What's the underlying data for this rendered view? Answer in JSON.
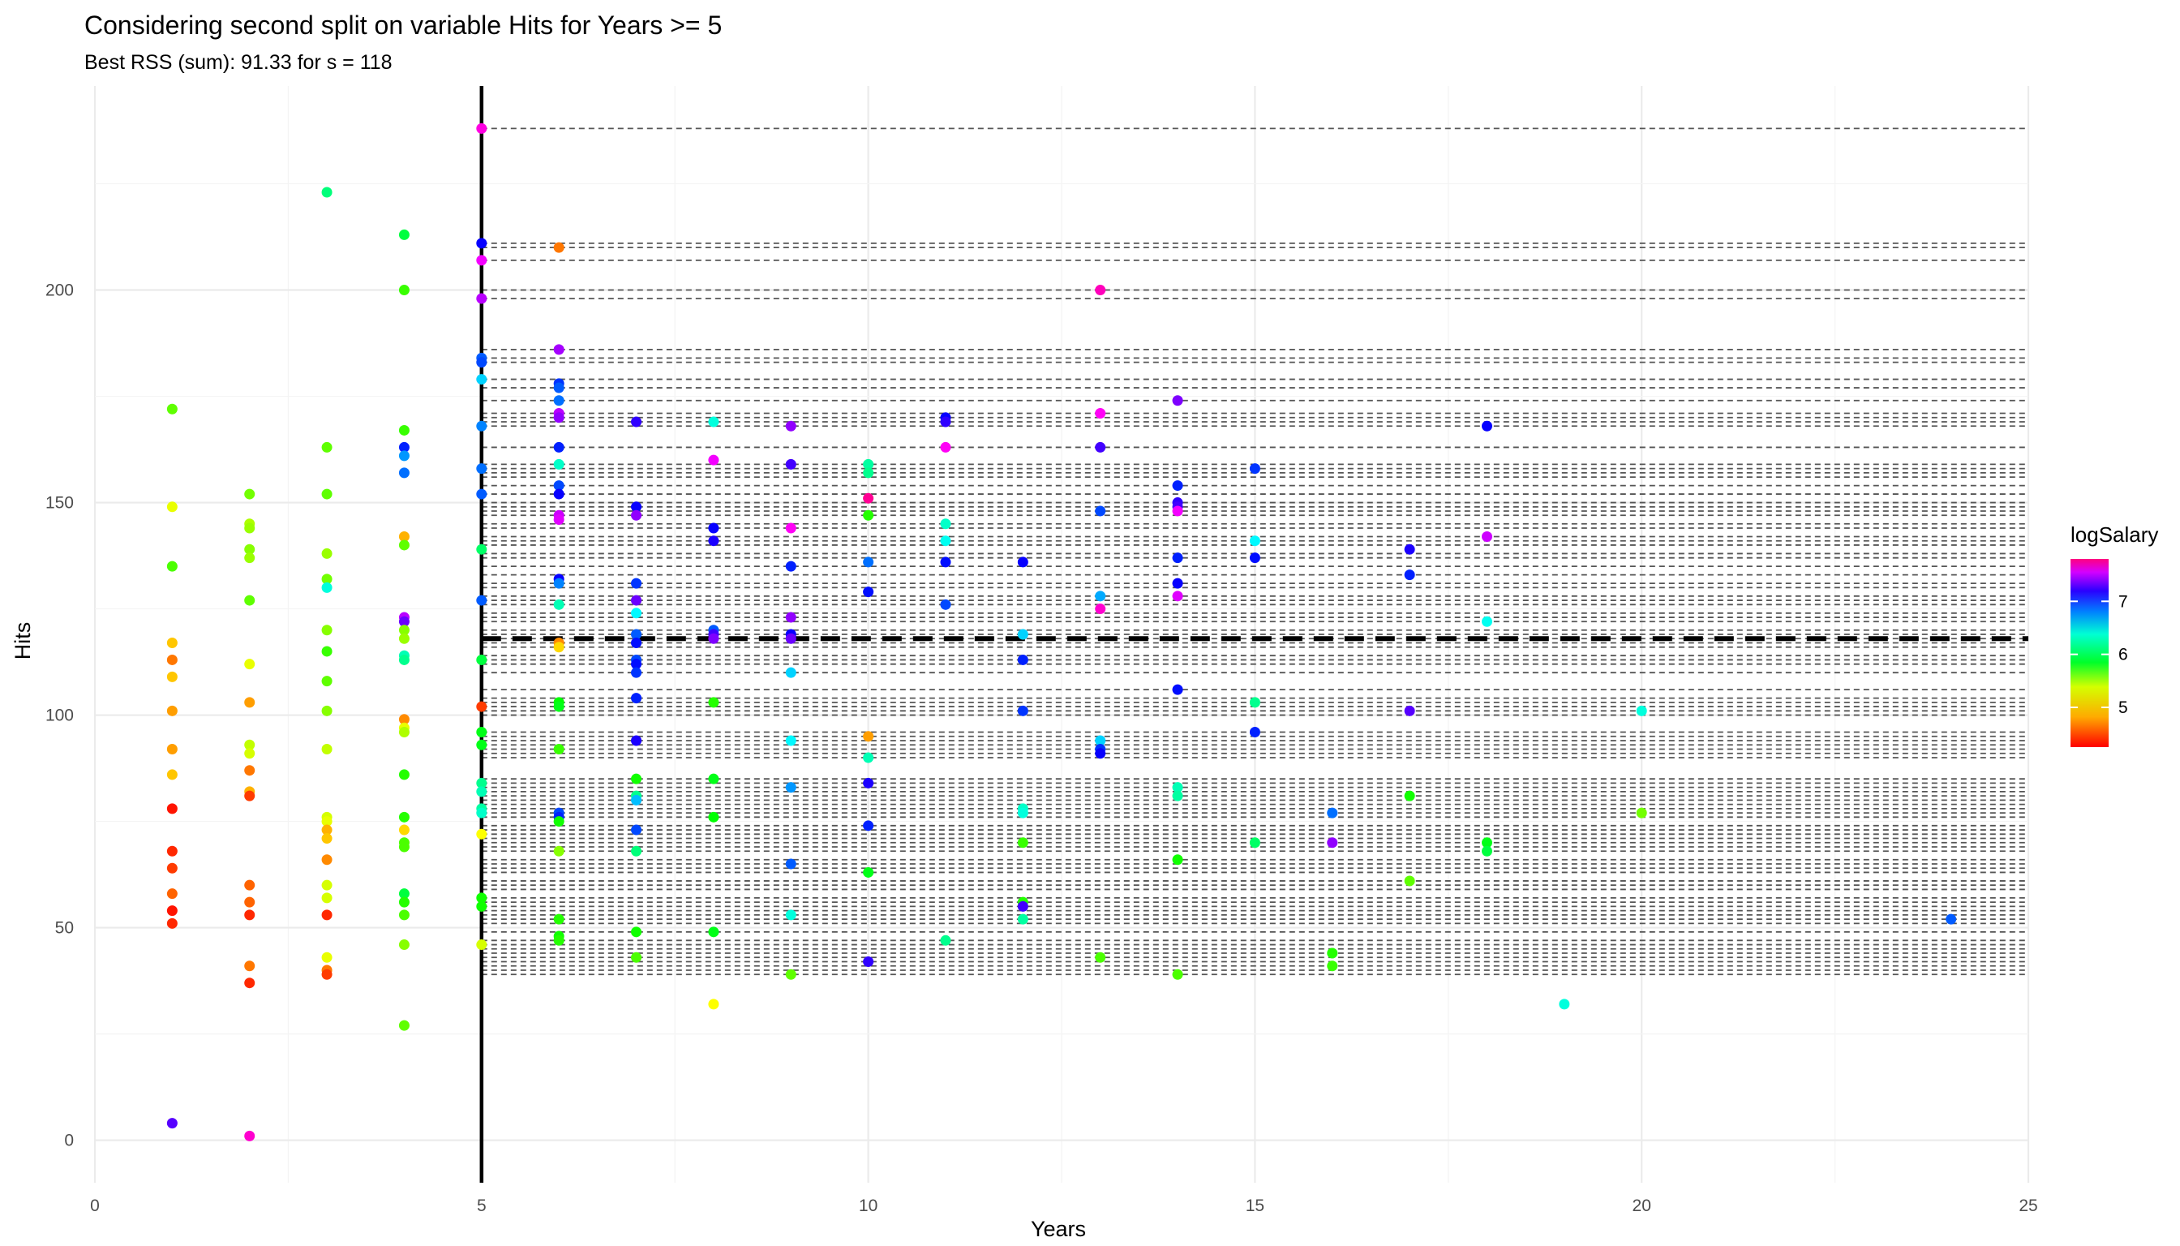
{
  "chart_data": {
    "type": "scatter",
    "title": "Considering second split on variable Hits for Years >= 5",
    "subtitle": "Best RSS (sum): 91.33 for s = 118",
    "xlabel": "Years",
    "ylabel": "Hits",
    "xlim": [
      0,
      25
    ],
    "ylim": [
      -10,
      248
    ],
    "x_ticks": [
      0,
      5,
      10,
      15,
      20,
      25
    ],
    "y_ticks": [
      0,
      50,
      100,
      150,
      200
    ],
    "grid": true,
    "legend": {
      "title": "logSalary",
      "position": "right",
      "ticks": [
        5,
        6,
        7
      ],
      "range": [
        4.25,
        7.8
      ],
      "palette": "rainbow"
    },
    "first_split": {
      "variable": "Years",
      "value": 5
    },
    "second_split": {
      "variable": "Hits",
      "value": 118
    },
    "candidate_splits": [
      39,
      40,
      41,
      42,
      43,
      44,
      45,
      46,
      47,
      49,
      51,
      52,
      53,
      54,
      55,
      56,
      57,
      59,
      60,
      61,
      63,
      64,
      65,
      66,
      68,
      69,
      70,
      71,
      72,
      73,
      74,
      76,
      77,
      78,
      79,
      80,
      81,
      82,
      83,
      84,
      85,
      90,
      91,
      92,
      93,
      94,
      95,
      96,
      100,
      101,
      102,
      103,
      104,
      106,
      110,
      112,
      113,
      114,
      116,
      117,
      118,
      119,
      120,
      122,
      123,
      124,
      126,
      127,
      128,
      130,
      131,
      133,
      135,
      137,
      138,
      140,
      141,
      142,
      144,
      145,
      147,
      148,
      149,
      150,
      152,
      154,
      156,
      157,
      158,
      159,
      163,
      168,
      169,
      170,
      171,
      174,
      177,
      179,
      183,
      184,
      186,
      198,
      200,
      207,
      210,
      211,
      238
    ],
    "points": [
      {
        "x": 1,
        "y": 172,
        "z": 5.3
      },
      {
        "x": 1,
        "y": 149,
        "z": 4.95
      },
      {
        "x": 1,
        "y": 135,
        "z": 5.35
      },
      {
        "x": 1,
        "y": 117,
        "z": 4.75
      },
      {
        "x": 1,
        "y": 113,
        "z": 4.55
      },
      {
        "x": 1,
        "y": 109,
        "z": 4.75
      },
      {
        "x": 1,
        "y": 101,
        "z": 4.65
      },
      {
        "x": 1,
        "y": 92,
        "z": 4.65
      },
      {
        "x": 1,
        "y": 86,
        "z": 4.75
      },
      {
        "x": 1,
        "y": 78,
        "z": 4.3
      },
      {
        "x": 1,
        "y": 68,
        "z": 4.35
      },
      {
        "x": 1,
        "y": 64,
        "z": 4.4
      },
      {
        "x": 1,
        "y": 58,
        "z": 4.5
      },
      {
        "x": 1,
        "y": 54,
        "z": 4.3
      },
      {
        "x": 1,
        "y": 51,
        "z": 4.35
      },
      {
        "x": 1,
        "y": 4,
        "z": 7.05
      },
      {
        "x": 2,
        "y": 152,
        "z": 5.25
      },
      {
        "x": 2,
        "y": 145,
        "z": 5.1
      },
      {
        "x": 2,
        "y": 144,
        "z": 5.15
      },
      {
        "x": 2,
        "y": 139,
        "z": 5.2
      },
      {
        "x": 2,
        "y": 137,
        "z": 5.15
      },
      {
        "x": 2,
        "y": 127,
        "z": 5.3
      },
      {
        "x": 2,
        "y": 112,
        "z": 4.95
      },
      {
        "x": 2,
        "y": 103,
        "z": 4.65
      },
      {
        "x": 2,
        "y": 93,
        "z": 5.05
      },
      {
        "x": 2,
        "y": 91,
        "z": 5.0
      },
      {
        "x": 2,
        "y": 87,
        "z": 4.55
      },
      {
        "x": 2,
        "y": 82,
        "z": 4.7
      },
      {
        "x": 2,
        "y": 81,
        "z": 4.4
      },
      {
        "x": 2,
        "y": 60,
        "z": 4.5
      },
      {
        "x": 2,
        "y": 56,
        "z": 4.5
      },
      {
        "x": 2,
        "y": 53,
        "z": 4.35
      },
      {
        "x": 2,
        "y": 41,
        "z": 4.55
      },
      {
        "x": 2,
        "y": 37,
        "z": 4.35
      },
      {
        "x": 2,
        "y": 1,
        "z": 7.6
      },
      {
        "x": 3,
        "y": 223,
        "z": 5.85
      },
      {
        "x": 3,
        "y": 163,
        "z": 5.3
      },
      {
        "x": 3,
        "y": 152,
        "z": 5.3
      },
      {
        "x": 3,
        "y": 138,
        "z": 5.15
      },
      {
        "x": 3,
        "y": 132,
        "z": 5.25
      },
      {
        "x": 3,
        "y": 130,
        "z": 6.1
      },
      {
        "x": 3,
        "y": 120,
        "z": 5.2
      },
      {
        "x": 3,
        "y": 115,
        "z": 5.4
      },
      {
        "x": 3,
        "y": 108,
        "z": 5.3
      },
      {
        "x": 3,
        "y": 101,
        "z": 5.2
      },
      {
        "x": 3,
        "y": 92,
        "z": 5.05
      },
      {
        "x": 3,
        "y": 76,
        "z": 5.0
      },
      {
        "x": 3,
        "y": 75,
        "z": 4.95
      },
      {
        "x": 3,
        "y": 73,
        "z": 4.7
      },
      {
        "x": 3,
        "y": 71,
        "z": 4.75
      },
      {
        "x": 3,
        "y": 66,
        "z": 4.6
      },
      {
        "x": 3,
        "y": 60,
        "z": 5.0
      },
      {
        "x": 3,
        "y": 57,
        "z": 5.0
      },
      {
        "x": 3,
        "y": 53,
        "z": 4.35
      },
      {
        "x": 3,
        "y": 43,
        "z": 4.95
      },
      {
        "x": 3,
        "y": 40,
        "z": 4.55
      },
      {
        "x": 3,
        "y": 39,
        "z": 4.4
      },
      {
        "x": 4,
        "y": 213,
        "z": 5.7
      },
      {
        "x": 4,
        "y": 200,
        "z": 5.4
      },
      {
        "x": 4,
        "y": 167,
        "z": 5.4
      },
      {
        "x": 4,
        "y": 163,
        "z": 6.75
      },
      {
        "x": 4,
        "y": 161,
        "z": 6.45
      },
      {
        "x": 4,
        "y": 157,
        "z": 6.55
      },
      {
        "x": 4,
        "y": 142,
        "z": 4.7
      },
      {
        "x": 4,
        "y": 140,
        "z": 5.3
      },
      {
        "x": 4,
        "y": 123,
        "z": 7.3
      },
      {
        "x": 4,
        "y": 122,
        "z": 7.1
      },
      {
        "x": 4,
        "y": 120,
        "z": 5.2
      },
      {
        "x": 4,
        "y": 118,
        "z": 5.15
      },
      {
        "x": 4,
        "y": 114,
        "z": 6.0
      },
      {
        "x": 4,
        "y": 113,
        "z": 5.9
      },
      {
        "x": 4,
        "y": 99,
        "z": 4.6
      },
      {
        "x": 4,
        "y": 97,
        "z": 4.95
      },
      {
        "x": 4,
        "y": 96,
        "z": 5.1
      },
      {
        "x": 4,
        "y": 86,
        "z": 5.45
      },
      {
        "x": 4,
        "y": 76,
        "z": 5.45
      },
      {
        "x": 4,
        "y": 73,
        "z": 4.8
      },
      {
        "x": 4,
        "y": 70,
        "z": 5.35
      },
      {
        "x": 4,
        "y": 69,
        "z": 5.35
      },
      {
        "x": 4,
        "y": 58,
        "z": 5.7
      },
      {
        "x": 4,
        "y": 56,
        "z": 5.45
      },
      {
        "x": 4,
        "y": 53,
        "z": 5.35
      },
      {
        "x": 4,
        "y": 46,
        "z": 5.2
      },
      {
        "x": 4,
        "y": 27,
        "z": 5.3
      },
      {
        "x": 5,
        "y": 238,
        "z": 7.55
      },
      {
        "x": 5,
        "y": 211,
        "z": 6.85
      },
      {
        "x": 5,
        "y": 207,
        "z": 7.45
      },
      {
        "x": 5,
        "y": 198,
        "z": 7.3
      },
      {
        "x": 5,
        "y": 184,
        "z": 6.6
      },
      {
        "x": 5,
        "y": 183,
        "z": 6.65
      },
      {
        "x": 5,
        "y": 179,
        "z": 6.3
      },
      {
        "x": 5,
        "y": 168,
        "z": 6.5
      },
      {
        "x": 5,
        "y": 158,
        "z": 6.55
      },
      {
        "x": 5,
        "y": 152,
        "z": 6.6
      },
      {
        "x": 5,
        "y": 139,
        "z": 5.8
      },
      {
        "x": 5,
        "y": 127,
        "z": 6.6
      },
      {
        "x": 5,
        "y": 113,
        "z": 5.7
      },
      {
        "x": 5,
        "y": 102,
        "z": 4.4
      },
      {
        "x": 5,
        "y": 96,
        "z": 5.6
      },
      {
        "x": 5,
        "y": 93,
        "z": 5.6
      },
      {
        "x": 5,
        "y": 84,
        "z": 5.9
      },
      {
        "x": 5,
        "y": 82,
        "z": 6.0
      },
      {
        "x": 5,
        "y": 78,
        "z": 5.95
      },
      {
        "x": 5,
        "y": 77,
        "z": 6.05
      },
      {
        "x": 5,
        "y": 72,
        "z": 4.9
      },
      {
        "x": 5,
        "y": 57,
        "z": 5.5
      },
      {
        "x": 5,
        "y": 55,
        "z": 5.5
      },
      {
        "x": 5,
        "y": 46,
        "z": 5.0
      },
      {
        "x": 6,
        "y": 210,
        "z": 4.55
      },
      {
        "x": 6,
        "y": 186,
        "z": 7.25
      },
      {
        "x": 6,
        "y": 178,
        "z": 6.7
      },
      {
        "x": 6,
        "y": 177,
        "z": 6.6
      },
      {
        "x": 6,
        "y": 174,
        "z": 6.55
      },
      {
        "x": 6,
        "y": 171,
        "z": 7.3
      },
      {
        "x": 6,
        "y": 170,
        "z": 7.2
      },
      {
        "x": 6,
        "y": 163,
        "z": 6.75
      },
      {
        "x": 6,
        "y": 159,
        "z": 6.05
      },
      {
        "x": 6,
        "y": 154,
        "z": 6.65
      },
      {
        "x": 6,
        "y": 152,
        "z": 6.85
      },
      {
        "x": 6,
        "y": 147,
        "z": 7.35
      },
      {
        "x": 6,
        "y": 146,
        "z": 7.4
      },
      {
        "x": 6,
        "y": 132,
        "z": 6.85
      },
      {
        "x": 6,
        "y": 131,
        "z": 6.5
      },
      {
        "x": 6,
        "y": 126,
        "z": 6.0
      },
      {
        "x": 6,
        "y": 117,
        "z": 4.6
      },
      {
        "x": 6,
        "y": 116,
        "z": 4.8
      },
      {
        "x": 6,
        "y": 103,
        "z": 5.55
      },
      {
        "x": 6,
        "y": 102,
        "z": 5.6
      },
      {
        "x": 6,
        "y": 92,
        "z": 5.4
      },
      {
        "x": 6,
        "y": 77,
        "z": 6.65
      },
      {
        "x": 6,
        "y": 76,
        "z": 6.75
      },
      {
        "x": 6,
        "y": 75,
        "z": 5.5
      },
      {
        "x": 6,
        "y": 68,
        "z": 5.2
      },
      {
        "x": 6,
        "y": 52,
        "z": 5.45
      },
      {
        "x": 6,
        "y": 48,
        "z": 5.5
      },
      {
        "x": 6,
        "y": 47,
        "z": 5.45
      },
      {
        "x": 7,
        "y": 169,
        "z": 6.95
      },
      {
        "x": 7,
        "y": 149,
        "z": 6.85
      },
      {
        "x": 7,
        "y": 147,
        "z": 7.2
      },
      {
        "x": 7,
        "y": 131,
        "z": 6.7
      },
      {
        "x": 7,
        "y": 127,
        "z": 7.1
      },
      {
        "x": 7,
        "y": 124,
        "z": 6.2
      },
      {
        "x": 7,
        "y": 119,
        "z": 6.6
      },
      {
        "x": 7,
        "y": 117,
        "z": 6.8
      },
      {
        "x": 7,
        "y": 113,
        "z": 6.65
      },
      {
        "x": 7,
        "y": 112,
        "z": 6.8
      },
      {
        "x": 7,
        "y": 110,
        "z": 6.7
      },
      {
        "x": 7,
        "y": 104,
        "z": 6.75
      },
      {
        "x": 7,
        "y": 94,
        "z": 6.9
      },
      {
        "x": 7,
        "y": 85,
        "z": 5.5
      },
      {
        "x": 7,
        "y": 81,
        "z": 5.9
      },
      {
        "x": 7,
        "y": 80,
        "z": 6.35
      },
      {
        "x": 7,
        "y": 73,
        "z": 6.65
      },
      {
        "x": 7,
        "y": 68,
        "z": 5.85
      },
      {
        "x": 7,
        "y": 49,
        "z": 5.5
      },
      {
        "x": 7,
        "y": 43,
        "z": 5.35
      },
      {
        "x": 8,
        "y": 169,
        "z": 6.1
      },
      {
        "x": 8,
        "y": 160,
        "z": 7.45
      },
      {
        "x": 8,
        "y": 144,
        "z": 6.85
      },
      {
        "x": 8,
        "y": 141,
        "z": 6.9
      },
      {
        "x": 8,
        "y": 120,
        "z": 6.6
      },
      {
        "x": 8,
        "y": 119,
        "z": 7.0
      },
      {
        "x": 8,
        "y": 118,
        "z": 7.15
      },
      {
        "x": 8,
        "y": 103,
        "z": 5.45
      },
      {
        "x": 8,
        "y": 85,
        "z": 5.6
      },
      {
        "x": 8,
        "y": 76,
        "z": 5.55
      },
      {
        "x": 8,
        "y": 49,
        "z": 5.6
      },
      {
        "x": 8,
        "y": 32,
        "z": 4.9
      },
      {
        "x": 9,
        "y": 168,
        "z": 7.2
      },
      {
        "x": 9,
        "y": 159,
        "z": 7.0
      },
      {
        "x": 9,
        "y": 144,
        "z": 7.5
      },
      {
        "x": 9,
        "y": 135,
        "z": 6.75
      },
      {
        "x": 9,
        "y": 123,
        "z": 7.2
      },
      {
        "x": 9,
        "y": 119,
        "z": 6.85
      },
      {
        "x": 9,
        "y": 118,
        "z": 7.1
      },
      {
        "x": 9,
        "y": 110,
        "z": 6.3
      },
      {
        "x": 9,
        "y": 94,
        "z": 6.2
      },
      {
        "x": 9,
        "y": 83,
        "z": 6.45
      },
      {
        "x": 9,
        "y": 65,
        "z": 6.6
      },
      {
        "x": 9,
        "y": 53,
        "z": 6.1
      },
      {
        "x": 9,
        "y": 39,
        "z": 5.3
      },
      {
        "x": 10,
        "y": 159,
        "z": 5.95
      },
      {
        "x": 10,
        "y": 157,
        "z": 5.9
      },
      {
        "x": 10,
        "y": 151,
        "z": 7.75
      },
      {
        "x": 10,
        "y": 147,
        "z": 5.45
      },
      {
        "x": 10,
        "y": 136,
        "z": 6.55
      },
      {
        "x": 10,
        "y": 129,
        "z": 6.8
      },
      {
        "x": 10,
        "y": 95,
        "z": 4.65
      },
      {
        "x": 10,
        "y": 90,
        "z": 6.0
      },
      {
        "x": 10,
        "y": 84,
        "z": 6.9
      },
      {
        "x": 10,
        "y": 74,
        "z": 6.75
      },
      {
        "x": 10,
        "y": 63,
        "z": 5.6
      },
      {
        "x": 10,
        "y": 42,
        "z": 6.95
      },
      {
        "x": 11,
        "y": 170,
        "z": 6.85
      },
      {
        "x": 11,
        "y": 169,
        "z": 6.95
      },
      {
        "x": 11,
        "y": 163,
        "z": 7.5
      },
      {
        "x": 11,
        "y": 145,
        "z": 6.05
      },
      {
        "x": 11,
        "y": 141,
        "z": 6.15
      },
      {
        "x": 11,
        "y": 136,
        "z": 6.8
      },
      {
        "x": 11,
        "y": 126,
        "z": 6.65
      },
      {
        "x": 11,
        "y": 47,
        "z": 5.9
      },
      {
        "x": 12,
        "y": 136,
        "z": 6.85
      },
      {
        "x": 12,
        "y": 119,
        "z": 6.3
      },
      {
        "x": 12,
        "y": 113,
        "z": 6.75
      },
      {
        "x": 12,
        "y": 101,
        "z": 6.7
      },
      {
        "x": 12,
        "y": 78,
        "z": 6.05
      },
      {
        "x": 12,
        "y": 77,
        "z": 6.1
      },
      {
        "x": 12,
        "y": 70,
        "z": 5.4
      },
      {
        "x": 12,
        "y": 56,
        "z": 5.45
      },
      {
        "x": 12,
        "y": 55,
        "z": 7.0
      },
      {
        "x": 12,
        "y": 52,
        "z": 5.95
      },
      {
        "x": 13,
        "y": 200,
        "z": 7.65
      },
      {
        "x": 13,
        "y": 171,
        "z": 7.5
      },
      {
        "x": 13,
        "y": 163,
        "z": 7.0
      },
      {
        "x": 13,
        "y": 148,
        "z": 6.65
      },
      {
        "x": 13,
        "y": 128,
        "z": 6.4
      },
      {
        "x": 13,
        "y": 125,
        "z": 7.6
      },
      {
        "x": 13,
        "y": 94,
        "z": 6.3
      },
      {
        "x": 13,
        "y": 92,
        "z": 6.7
      },
      {
        "x": 13,
        "y": 91,
        "z": 6.85
      },
      {
        "x": 13,
        "y": 43,
        "z": 5.35
      },
      {
        "x": 14,
        "y": 174,
        "z": 7.15
      },
      {
        "x": 14,
        "y": 154,
        "z": 6.75
      },
      {
        "x": 14,
        "y": 150,
        "z": 6.95
      },
      {
        "x": 14,
        "y": 149,
        "z": 7.0
      },
      {
        "x": 14,
        "y": 148,
        "z": 7.45
      },
      {
        "x": 14,
        "y": 137,
        "z": 6.75
      },
      {
        "x": 14,
        "y": 131,
        "z": 6.85
      },
      {
        "x": 14,
        "y": 128,
        "z": 7.4
      },
      {
        "x": 14,
        "y": 106,
        "z": 6.8
      },
      {
        "x": 14,
        "y": 83,
        "z": 6.0
      },
      {
        "x": 14,
        "y": 81,
        "z": 5.95
      },
      {
        "x": 14,
        "y": 66,
        "z": 5.5
      },
      {
        "x": 14,
        "y": 39,
        "z": 5.35
      },
      {
        "x": 15,
        "y": 158,
        "z": 6.7
      },
      {
        "x": 15,
        "y": 141,
        "z": 6.2
      },
      {
        "x": 15,
        "y": 137,
        "z": 6.8
      },
      {
        "x": 15,
        "y": 103,
        "z": 5.9
      },
      {
        "x": 15,
        "y": 96,
        "z": 6.75
      },
      {
        "x": 15,
        "y": 70,
        "z": 5.8
      },
      {
        "x": 16,
        "y": 77,
        "z": 6.55
      },
      {
        "x": 16,
        "y": 70,
        "z": 7.2
      },
      {
        "x": 16,
        "y": 44,
        "z": 5.45
      },
      {
        "x": 16,
        "y": 41,
        "z": 5.4
      },
      {
        "x": 17,
        "y": 139,
        "z": 6.9
      },
      {
        "x": 17,
        "y": 133,
        "z": 6.75
      },
      {
        "x": 17,
        "y": 101,
        "z": 7.05
      },
      {
        "x": 17,
        "y": 81,
        "z": 5.5
      },
      {
        "x": 17,
        "y": 61,
        "z": 5.3
      },
      {
        "x": 18,
        "y": 168,
        "z": 6.85
      },
      {
        "x": 18,
        "y": 142,
        "z": 7.35
      },
      {
        "x": 18,
        "y": 122,
        "z": 6.15
      },
      {
        "x": 18,
        "y": 70,
        "z": 5.6
      },
      {
        "x": 18,
        "y": 68,
        "z": 5.7
      },
      {
        "x": 19,
        "y": 32,
        "z": 6.1
      },
      {
        "x": 20,
        "y": 101,
        "z": 6.1
      },
      {
        "x": 20,
        "y": 77,
        "z": 5.25
      },
      {
        "x": 24,
        "y": 52,
        "z": 6.6
      }
    ]
  }
}
